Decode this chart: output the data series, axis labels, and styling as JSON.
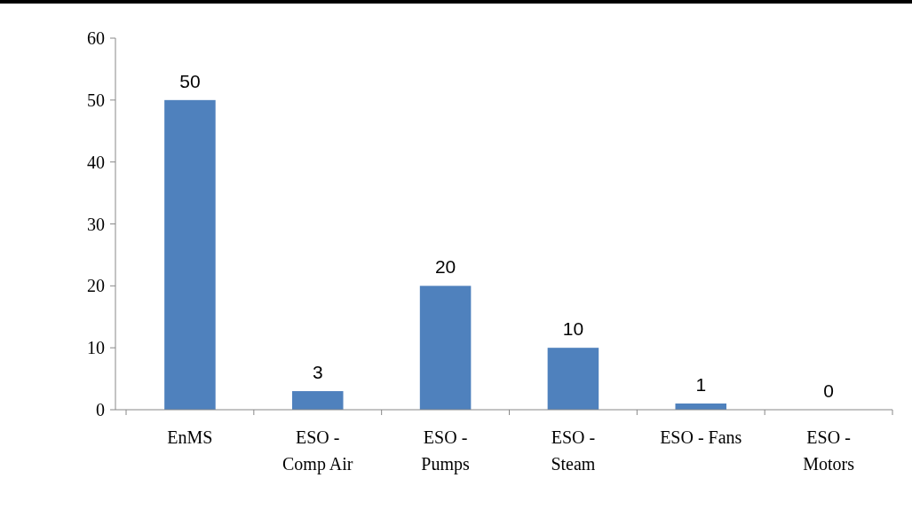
{
  "chart_data": {
    "type": "bar",
    "categories": [
      "EnMS",
      "ESO - Comp Air",
      "ESO - Pumps",
      "ESO - Steam",
      "ESO - Fans",
      "ESO - Motors"
    ],
    "values": [
      50,
      3,
      20,
      10,
      1,
      0
    ],
    "color": "#4f81bd",
    "ylim": [
      0,
      60
    ],
    "yticks": [
      0,
      10,
      20,
      30,
      40,
      50,
      60
    ],
    "data_labels": true
  }
}
